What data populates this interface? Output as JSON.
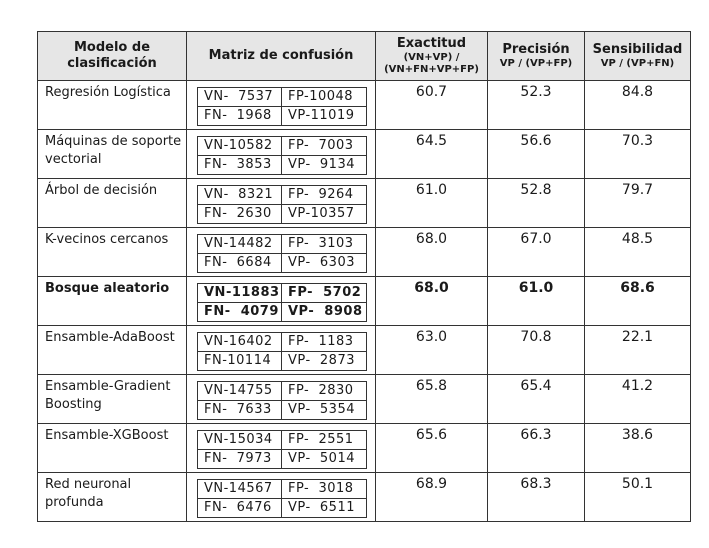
{
  "headers": {
    "model": "Modelo de clasificación",
    "matrix": "Matriz de confusión",
    "accuracy": "Exactitud",
    "accuracy_formula": "(VN+VP) / (VN+FN+VP+FP)",
    "precision": "Precisión",
    "precision_formula": "VP / (VP+FP)",
    "sensitivity": "Sensibilidad",
    "sensitivity_formula": "VP / (VP+FN)"
  },
  "rows": [
    {
      "name": "Regresión Logística",
      "vn": "VN-  7537",
      "fp": "FP-10048",
      "fn": "FN-  1968",
      "vp": "VP-11019",
      "acc": "60.7",
      "prec": "52.3",
      "sens": "84.8"
    },
    {
      "name": "Máquinas de soporte vectorial",
      "vn": "VN-10582",
      "fp": "FP-  7003",
      "fn": "FN-  3853",
      "vp": "VP-  9134",
      "acc": "64.5",
      "prec": "56.6",
      "sens": "70.3"
    },
    {
      "name": "Árbol de decisión",
      "vn": "VN-  8321",
      "fp": "FP-  9264",
      "fn": "FN-  2630",
      "vp": "VP-10357",
      "acc": "61.0",
      "prec": "52.8",
      "sens": "79.7"
    },
    {
      "name": "K-vecinos cercanos",
      "vn": "VN-14482",
      "fp": "FP-  3103",
      "fn": "FN-  6684",
      "vp": "VP-  6303",
      "acc": "68.0",
      "prec": "67.0",
      "sens": "48.5"
    },
    {
      "name": "Bosque aleatorio",
      "vn": "VN-11883",
      "fp": "FP-  5702",
      "fn": "FN-  4079",
      "vp": "VP-  8908",
      "acc": "68.0",
      "prec": "61.0",
      "sens": "68.6"
    },
    {
      "name": "Ensamble-AdaBoost",
      "vn": "VN-16402",
      "fp": "FP-  1183",
      "fn": "FN-10114",
      "vp": "VP-  2873",
      "acc": "63.0",
      "prec": "70.8",
      "sens": "22.1"
    },
    {
      "name": "Ensamble-Gradient Boosting",
      "vn": "VN-14755",
      "fp": "FP-  2830",
      "fn": "FN-  7633",
      "vp": "VP-  5354",
      "acc": "65.8",
      "prec": "65.4",
      "sens": "41.2"
    },
    {
      "name": "Ensamble-XGBoost",
      "vn": "VN-15034",
      "fp": "FP-  2551",
      "fn": "FN-  7973",
      "vp": "VP-  5014",
      "acc": "65.6",
      "prec": "66.3",
      "sens": "38.6"
    },
    {
      "name": "Red neuronal profunda",
      "vn": "VN-14567",
      "fp": "FP-  3018",
      "fn": "FN-  6476",
      "vp": "VP-  6511",
      "acc": "68.9",
      "prec": "68.3",
      "sens": "50.1"
    }
  ]
}
